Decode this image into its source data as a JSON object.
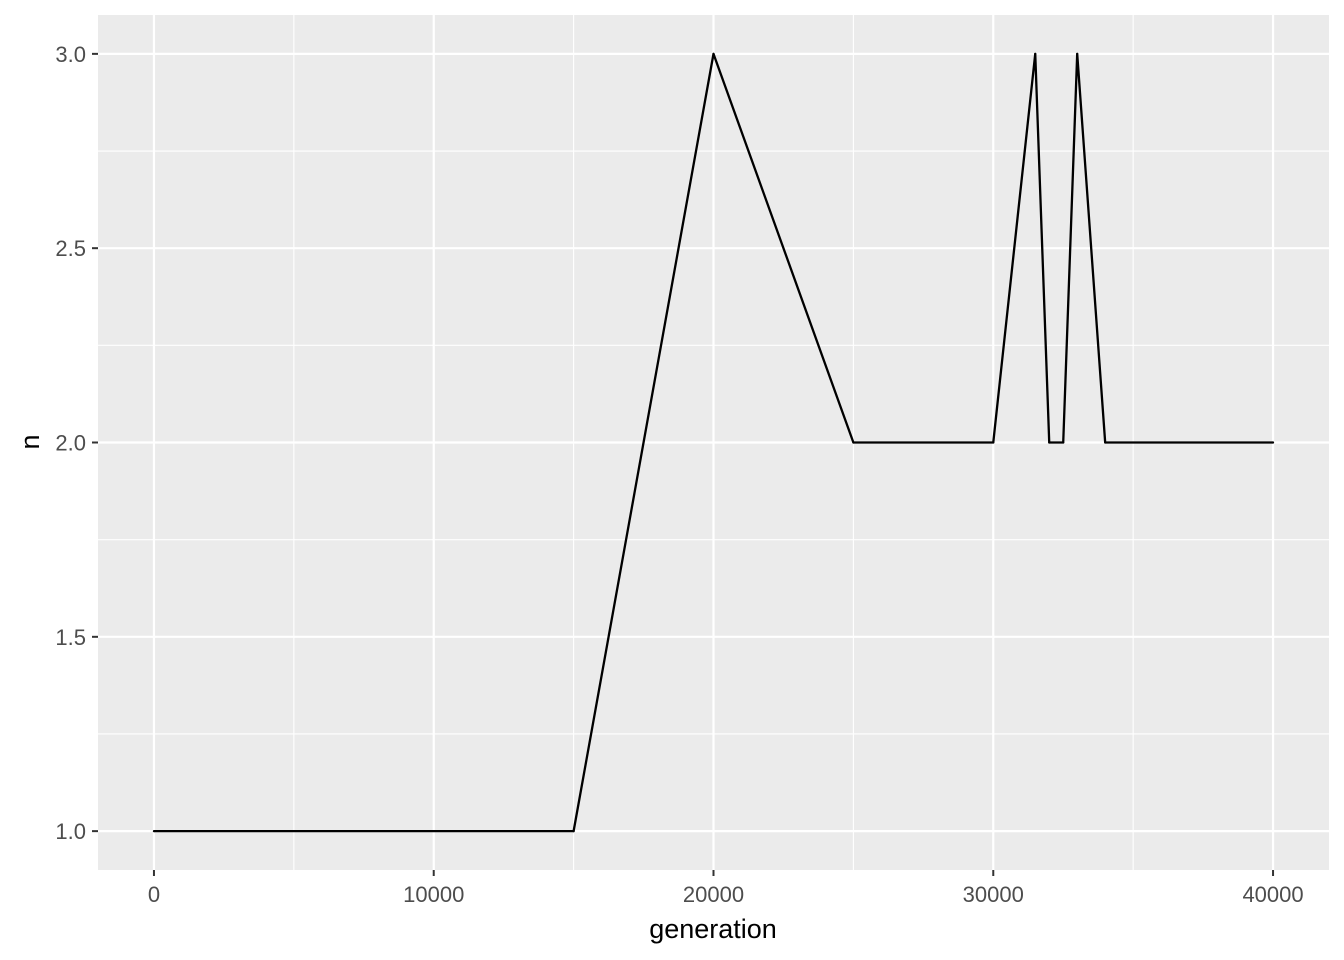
{
  "chart_data": {
    "type": "line",
    "title": "",
    "xlabel": "generation",
    "ylabel": "n",
    "xlim": [
      -2000,
      42000
    ],
    "ylim": [
      0.9,
      3.1
    ],
    "x_ticks": [
      0,
      10000,
      20000,
      30000,
      40000
    ],
    "x_tick_labels": [
      "0",
      "10000",
      "20000",
      "30000",
      "40000"
    ],
    "x_minor_ticks": [
      5000,
      15000,
      25000,
      35000
    ],
    "y_ticks": [
      1.0,
      1.5,
      2.0,
      2.5,
      3.0
    ],
    "y_tick_labels": [
      "1.0",
      "1.5",
      "2.0",
      "2.5",
      "3.0"
    ],
    "y_minor_ticks": [
      1.25,
      1.75,
      2.25,
      2.75
    ],
    "grid": true,
    "legend": "none",
    "colors": {
      "panel_background": "#ebebeb",
      "grid": "#ffffff",
      "line": "#000000",
      "tick_text": "#4d4d4d",
      "tick_mark": "#333333"
    },
    "series": [
      {
        "x": [
          0,
          15000,
          20000,
          25000,
          30000,
          31500,
          32000,
          32500,
          33000,
          34000,
          40000
        ],
        "y": [
          1,
          1,
          3,
          2,
          2,
          3,
          2,
          2,
          3,
          2,
          2
        ]
      }
    ]
  }
}
